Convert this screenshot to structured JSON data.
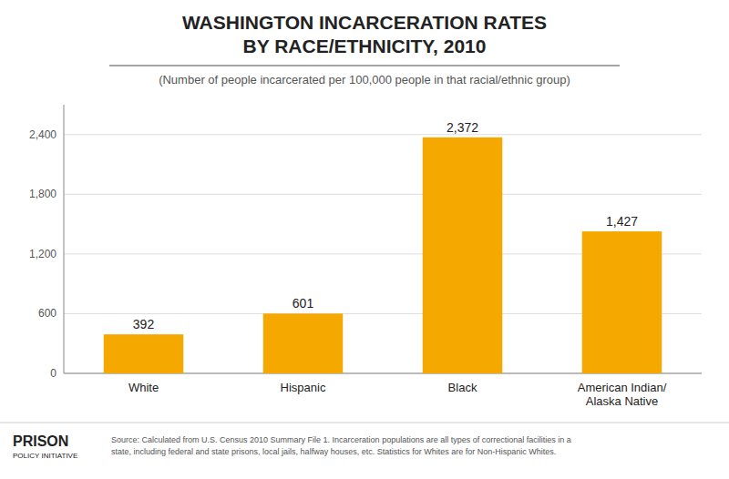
{
  "chart_data": {
    "type": "bar",
    "title": "WASHINGTON INCARCERATION RATES\nBY RACE/ETHNICITY, 2010",
    "subtitle": "(Number of people incarcerated per 100,000 people in that racial/ethnic group)",
    "categories": [
      "White",
      "Hispanic",
      "Black",
      "American Indian/\nAlaska Native"
    ],
    "values": [
      392,
      601,
      2372,
      1427
    ],
    "value_labels": [
      "392",
      "601",
      "2,372",
      "1,427"
    ],
    "data_labels": true,
    "color": "#F5A800",
    "ylim": [
      0,
      2700
    ],
    "yticks": [
      0,
      600,
      {
        "value": 1200,
        "label": "1,200"
      },
      {
        "value": 1800,
        "label": "1,800"
      },
      {
        "value": 2400,
        "label": "2,400"
      }
    ],
    "grid": true,
    "source": "Source: Calculated from U.S. Census 2010 Summary File 1. Incarceration populations are all types of correctional facilities in a\nstate, including federal and state prisons, local jails, halfway houses, etc. Statistics for Whites are for Non-Hispanic Whites.",
    "annotations": [
      "PRISON",
      "POLICY INITIATIVE"
    ]
  }
}
